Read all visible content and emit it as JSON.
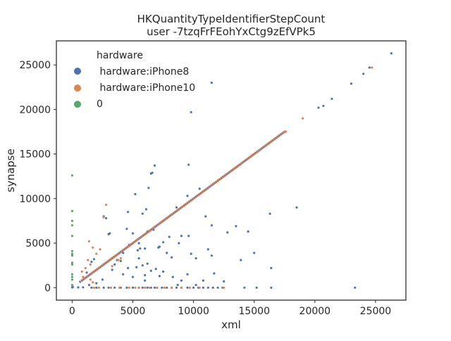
{
  "chart_data": {
    "type": "scatter",
    "title": "HKQuantityTypeIdentifierStepCount",
    "subtitle": "user -7tzqFrFEohYxCtg9zEfVPk5",
    "xlabel": "xml",
    "ylabel": "synapse",
    "xlim": [
      -1300,
      27500
    ],
    "ylim": [
      -1400,
      27700
    ],
    "xticks": [
      0,
      5000,
      10000,
      15000,
      20000,
      25000
    ],
    "yticks": [
      0,
      5000,
      10000,
      15000,
      20000,
      25000
    ],
    "xtick_labels": [
      "0",
      "5000",
      "10000",
      "15000",
      "20000",
      "25000"
    ],
    "ytick_labels": [
      "0",
      "5000",
      "10000",
      "15000",
      "20000",
      "25000"
    ],
    "grid": false,
    "legend": {
      "title": "hardware",
      "placement": "top-left"
    },
    "series": [
      {
        "name": " hardware:iPhone8",
        "color": "#4c72b0",
        "identity_line": {
          "from": 600,
          "to": 17500
        },
        "points": [
          [
            26300,
            26300
          ],
          [
            24500,
            24700
          ],
          [
            24000,
            24000
          ],
          [
            23000,
            22900
          ],
          [
            21400,
            21200
          ],
          [
            20700,
            20400
          ],
          [
            20300,
            20200
          ],
          [
            11500,
            23000
          ],
          [
            9800,
            19700
          ],
          [
            18500,
            9000
          ],
          [
            16300,
            8300
          ],
          [
            6800,
            13700
          ],
          [
            6600,
            12900
          ],
          [
            6500,
            12800
          ],
          [
            6300,
            11200
          ],
          [
            5200,
            10500
          ],
          [
            9600,
            13800
          ],
          [
            10500,
            11100
          ],
          [
            9500,
            10300
          ],
          [
            8600,
            9000
          ],
          [
            11000,
            8000
          ],
          [
            6100,
            8800
          ],
          [
            5800,
            8300
          ],
          [
            4600,
            8500
          ],
          [
            11500,
            7000
          ],
          [
            12800,
            6200
          ],
          [
            13500,
            6900
          ],
          [
            14500,
            6300
          ],
          [
            8000,
            5700
          ],
          [
            9000,
            5800
          ],
          [
            9600,
            5800
          ],
          [
            8800,
            5000
          ],
          [
            7500,
            5100
          ],
          [
            7200,
            4600
          ],
          [
            11200,
            4300
          ],
          [
            15000,
            3900
          ],
          [
            16400,
            2200
          ],
          [
            13900,
            3100
          ],
          [
            11500,
            3600
          ],
          [
            9800,
            3800
          ],
          [
            7800,
            3900
          ],
          [
            7100,
            4500
          ],
          [
            6000,
            4400
          ],
          [
            5600,
            4400
          ],
          [
            4700,
            4800
          ],
          [
            5500,
            5000
          ],
          [
            6700,
            6500
          ],
          [
            6200,
            6300
          ],
          [
            5000,
            6100
          ],
          [
            4500,
            6600
          ],
          [
            3100,
            6100
          ],
          [
            3000,
            6000
          ],
          [
            2800,
            7800
          ],
          [
            2600,
            8000
          ],
          [
            1800,
            3200
          ],
          [
            1600,
            2900
          ],
          [
            1200,
            1700
          ],
          [
            3500,
            2600
          ],
          [
            4000,
            3000
          ],
          [
            4600,
            2200
          ],
          [
            5300,
            2300
          ],
          [
            5800,
            2500
          ],
          [
            6200,
            2700
          ],
          [
            6500,
            1900
          ],
          [
            6900,
            2100
          ],
          [
            7500,
            1800
          ],
          [
            8300,
            1200
          ],
          [
            9000,
            800
          ],
          [
            9500,
            1500
          ],
          [
            10800,
            800
          ],
          [
            11700,
            1600
          ],
          [
            12500,
            700
          ],
          [
            3300,
            2000
          ],
          [
            4200,
            1500
          ],
          [
            5000,
            1200
          ],
          [
            6000,
            800
          ],
          [
            2500,
            900
          ],
          [
            2000,
            500
          ],
          [
            1400,
            300
          ],
          [
            0,
            30
          ],
          [
            50,
            60
          ],
          [
            500,
            30
          ],
          [
            900,
            40
          ],
          [
            1600,
            0
          ],
          [
            2000,
            0
          ],
          [
            2600,
            0
          ],
          [
            3000,
            0
          ],
          [
            3500,
            0
          ],
          [
            4000,
            0
          ],
          [
            4500,
            0
          ],
          [
            5000,
            0
          ],
          [
            5500,
            0
          ],
          [
            5800,
            0
          ],
          [
            6200,
            0
          ],
          [
            6500,
            0
          ],
          [
            6800,
            0
          ],
          [
            7000,
            0
          ],
          [
            7400,
            0
          ],
          [
            7800,
            0
          ],
          [
            8200,
            0
          ],
          [
            8600,
            0
          ],
          [
            9000,
            0
          ],
          [
            9500,
            0
          ],
          [
            10000,
            0
          ],
          [
            10400,
            0
          ],
          [
            10800,
            0
          ],
          [
            11200,
            0
          ],
          [
            11600,
            0
          ],
          [
            12000,
            0
          ],
          [
            12400,
            0
          ],
          [
            14200,
            0
          ],
          [
            15200,
            0
          ],
          [
            16400,
            0
          ],
          [
            23300,
            0
          ],
          [
            5400,
            4200
          ],
          [
            4200,
            3900
          ],
          [
            3700,
            3100
          ],
          [
            5500,
            3300
          ],
          [
            8200,
            3400
          ],
          [
            10200,
            3300
          ],
          [
            6000,
            1400
          ],
          [
            7200,
            1300
          ],
          [
            8700,
            300
          ],
          [
            10200,
            300
          ]
        ]
      },
      {
        "name": " hardware:iPhone10",
        "color": "#dd8452",
        "identity_line": {
          "from": 800,
          "to": 17600
        },
        "points": [
          [
            24700,
            24700
          ],
          [
            19000,
            19000
          ],
          [
            17600,
            17500
          ],
          [
            2800,
            9300
          ],
          [
            2600,
            7900
          ],
          [
            1400,
            5200
          ],
          [
            1700,
            4500
          ],
          [
            1300,
            3100
          ],
          [
            1100,
            2200
          ],
          [
            800,
            1800
          ],
          [
            1500,
            2600
          ],
          [
            2000,
            3800
          ],
          [
            2300,
            4300
          ],
          [
            900,
            1200
          ],
          [
            3800,
            3100
          ],
          [
            4000,
            3300
          ],
          [
            3300,
            2400
          ],
          [
            4700,
            0
          ],
          [
            5200,
            0
          ],
          [
            5500,
            0
          ],
          [
            6000,
            0
          ],
          [
            6400,
            0
          ],
          [
            7000,
            0
          ],
          [
            7600,
            0
          ],
          [
            8200,
            0
          ],
          [
            9000,
            0
          ],
          [
            9700,
            0
          ],
          [
            10500,
            0
          ],
          [
            12500,
            0
          ],
          [
            1800,
            0
          ],
          [
            2200,
            0
          ],
          [
            3200,
            0
          ],
          [
            3900,
            0
          ],
          [
            1700,
            600
          ],
          [
            1500,
            900
          ]
        ]
      },
      {
        "name": "0",
        "color": "#55a868",
        "points": [
          [
            0,
            12600
          ],
          [
            0,
            8600
          ],
          [
            0,
            7500
          ],
          [
            0,
            7000
          ],
          [
            0,
            5800
          ],
          [
            0,
            4100
          ],
          [
            0,
            3800
          ],
          [
            0,
            3600
          ],
          [
            0,
            2800
          ],
          [
            0,
            2600
          ],
          [
            0,
            1500
          ],
          [
            0,
            1200
          ],
          [
            0,
            900
          ],
          [
            0,
            300
          ]
        ]
      }
    ]
  }
}
